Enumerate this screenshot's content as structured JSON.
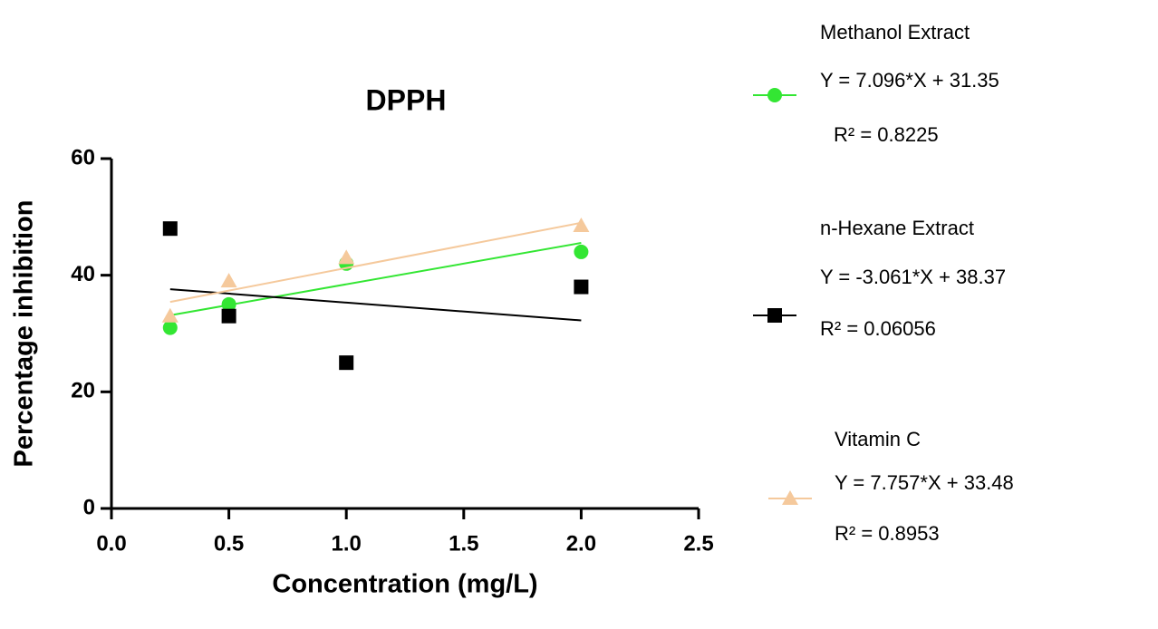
{
  "chart_data": {
    "type": "scatter",
    "title": "DPPH",
    "x_label": "Concentration (mg/L)",
    "y_label": "Percentage inhibition",
    "xlim": [
      0,
      2.5
    ],
    "ylim": [
      0,
      60
    ],
    "xticks": [
      {
        "value": 0,
        "label": "0.0"
      },
      {
        "value": 0.5,
        "label": "0.5"
      },
      {
        "value": 1,
        "label": "1.0"
      },
      {
        "value": 1.5,
        "label": "1.5"
      },
      {
        "value": 2,
        "label": "2.0"
      },
      {
        "value": 2.5,
        "label": "2.5"
      }
    ],
    "yticks": [
      0,
      20,
      40,
      60
    ],
    "x": [
      0.25,
      0.5,
      1,
      2
    ],
    "series": [
      {
        "name": "Methanol Extract",
        "color": "#33e633",
        "marker": "circle",
        "values": [
          31,
          35,
          42,
          44
        ],
        "fit": {
          "label": "Y = 7.096*X + 31.35",
          "slope": 7.096,
          "intercept": 31.35
        },
        "r2": {
          "value": 0.8225,
          "label": "R² = 0.8225"
        }
      },
      {
        "name": "n-Hexane Extract",
        "color": "#000000",
        "marker": "square",
        "values": [
          48,
          33,
          25,
          38
        ],
        "fit": {
          "label": "Y = -3.061*X + 38.37",
          "slope": -3.061,
          "intercept": 38.37
        },
        "r2": {
          "value": 0.06056,
          "label": "R² = 0.06056"
        }
      },
      {
        "name": "Vitamin C",
        "color": "#f5c99c",
        "marker": "triangle",
        "values": [
          33,
          39,
          43,
          48.5
        ],
        "fit": {
          "label": "Y = 7.757*X + 33.48",
          "slope": 7.757,
          "intercept": 33.48
        },
        "r2": {
          "value": 0.8953,
          "label": "R² = 0.8953"
        }
      }
    ]
  }
}
